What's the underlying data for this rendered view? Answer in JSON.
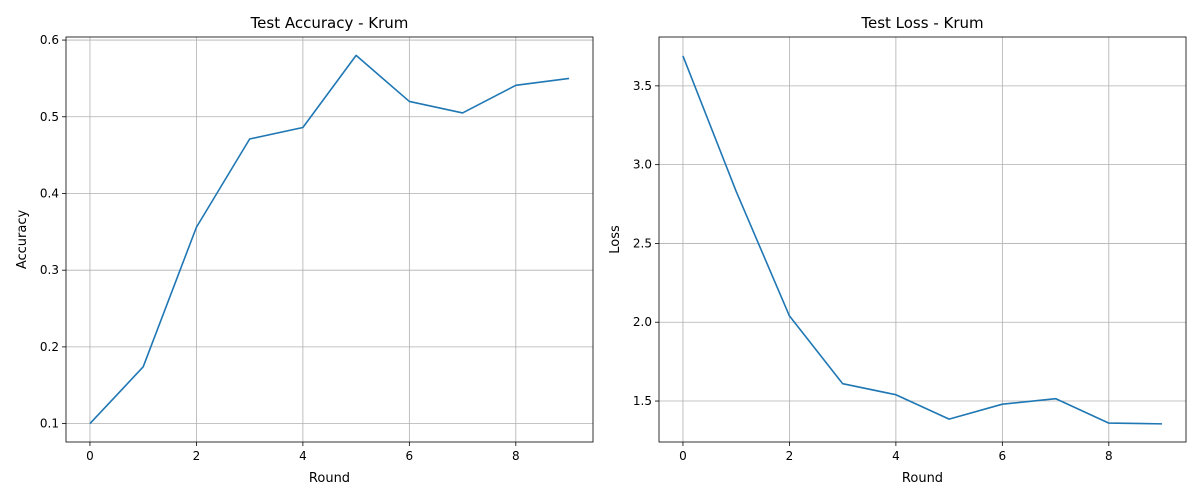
{
  "chart_data": [
    {
      "type": "line",
      "title": "Test Accuracy - Krum",
      "xlabel": "Round",
      "ylabel": "Accuracy",
      "xlim": [
        -0.45,
        9.45
      ],
      "ylim": [
        0.076,
        0.604
      ],
      "xticks": [
        0,
        2,
        4,
        6,
        8
      ],
      "xtick_labels": [
        "0",
        "2",
        "4",
        "6",
        "8"
      ],
      "yticks": [
        0.1,
        0.2,
        0.3,
        0.4,
        0.5,
        0.6
      ],
      "ytick_labels": [
        "0.1",
        "0.2",
        "0.3",
        "0.4",
        "0.5",
        "0.6"
      ],
      "grid": true,
      "series": [
        {
          "color": "#1f77b4",
          "x": [
            0,
            1,
            2,
            3,
            4,
            5,
            6,
            7,
            8,
            9
          ],
          "y": [
            0.1,
            0.174,
            0.356,
            0.471,
            0.486,
            0.58,
            0.52,
            0.505,
            0.541,
            0.55
          ]
        }
      ]
    },
    {
      "type": "line",
      "title": "Test Loss - Krum",
      "xlabel": "Round",
      "ylabel": "Loss",
      "xlim": [
        -0.45,
        9.45
      ],
      "ylim": [
        1.24,
        3.81
      ],
      "xticks": [
        0,
        2,
        4,
        6,
        8
      ],
      "xtick_labels": [
        "0",
        "2",
        "4",
        "6",
        "8"
      ],
      "yticks": [
        1.5,
        2.0,
        2.5,
        3.0,
        3.5
      ],
      "ytick_labels": [
        "1.5",
        "2.0",
        "2.5",
        "3.0",
        "3.5"
      ],
      "grid": true,
      "series": [
        {
          "color": "#1f77b4",
          "x": [
            0,
            1,
            2,
            3,
            4,
            5,
            6,
            7,
            8,
            9
          ],
          "y": [
            3.69,
            2.83,
            2.04,
            1.61,
            1.54,
            1.385,
            1.48,
            1.515,
            1.36,
            1.355
          ]
        }
      ]
    }
  ]
}
